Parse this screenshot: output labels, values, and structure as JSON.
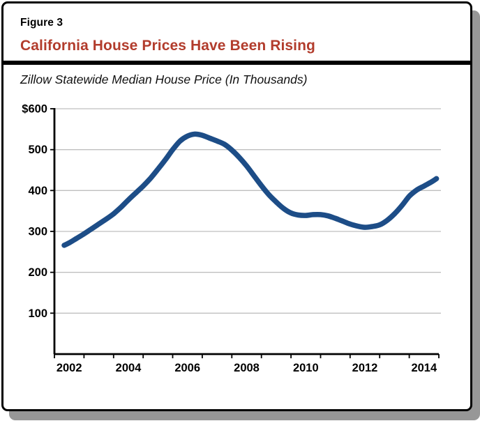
{
  "figure": {
    "label": "Figure 3",
    "title": "California House Prices Have Been Rising",
    "subtitle": "Zillow Statewide Median House Price (In Thousands)"
  },
  "colors": {
    "title_red": "#b23c2c",
    "line_blue": "#1d4d87",
    "grid_gray": "#bfbfbf",
    "axis_black": "#000000",
    "shadow_gray": "#979797"
  },
  "chart_data": {
    "type": "line",
    "title": "Zillow Statewide Median House Price (In Thousands)",
    "grid": "horizontal",
    "legend": "none",
    "x_axis": {
      "min": 2002,
      "max": 2015,
      "tick_every_years": 1,
      "labels": [
        {
          "year": 2002,
          "label": "2002"
        },
        {
          "year": 2004,
          "label": "2004"
        },
        {
          "year": 2006,
          "label": "2006"
        },
        {
          "year": 2008,
          "label": "2008"
        },
        {
          "year": 2010,
          "label": "2010"
        },
        {
          "year": 2012,
          "label": "2012"
        },
        {
          "year": 2014,
          "label": "2014"
        }
      ]
    },
    "y_axis": {
      "min": 0,
      "max": 600,
      "tick_interval": 100,
      "ticks": [
        {
          "value": 600,
          "label": "$600"
        },
        {
          "value": 500,
          "label": "500"
        },
        {
          "value": 400,
          "label": "400"
        },
        {
          "value": 300,
          "label": "300"
        },
        {
          "value": 200,
          "label": "200"
        },
        {
          "value": 100,
          "label": "100"
        }
      ]
    },
    "series": [
      {
        "name": "Statewide median house price (thousands of dollars)",
        "color": "#1d4d87",
        "points": [
          [
            2002.33,
            266
          ],
          [
            2002.5,
            272
          ],
          [
            2002.75,
            283
          ],
          [
            2003.0,
            294
          ],
          [
            2003.25,
            306
          ],
          [
            2003.5,
            318
          ],
          [
            2003.75,
            330
          ],
          [
            2004.0,
            343
          ],
          [
            2004.25,
            359
          ],
          [
            2004.5,
            377
          ],
          [
            2004.75,
            394
          ],
          [
            2005.0,
            411
          ],
          [
            2005.25,
            430
          ],
          [
            2005.5,
            452
          ],
          [
            2005.75,
            475
          ],
          [
            2006.0,
            500
          ],
          [
            2006.25,
            521
          ],
          [
            2006.5,
            533
          ],
          [
            2006.75,
            538
          ],
          [
            2007.0,
            535
          ],
          [
            2007.25,
            528
          ],
          [
            2007.5,
            521
          ],
          [
            2007.75,
            513
          ],
          [
            2008.0,
            499
          ],
          [
            2008.25,
            481
          ],
          [
            2008.5,
            460
          ],
          [
            2008.75,
            436
          ],
          [
            2009.0,
            412
          ],
          [
            2009.25,
            390
          ],
          [
            2009.5,
            372
          ],
          [
            2009.75,
            356
          ],
          [
            2010.0,
            345
          ],
          [
            2010.25,
            340
          ],
          [
            2010.5,
            339
          ],
          [
            2010.75,
            341
          ],
          [
            2011.0,
            341
          ],
          [
            2011.25,
            338
          ],
          [
            2011.5,
            332
          ],
          [
            2011.75,
            325
          ],
          [
            2012.0,
            318
          ],
          [
            2012.25,
            313
          ],
          [
            2012.5,
            310
          ],
          [
            2012.75,
            312
          ],
          [
            2013.0,
            316
          ],
          [
            2013.25,
            327
          ],
          [
            2013.5,
            343
          ],
          [
            2013.75,
            363
          ],
          [
            2014.0,
            386
          ],
          [
            2014.25,
            401
          ],
          [
            2014.5,
            411
          ],
          [
            2014.75,
            421
          ],
          [
            2014.92,
            429
          ]
        ]
      }
    ]
  }
}
